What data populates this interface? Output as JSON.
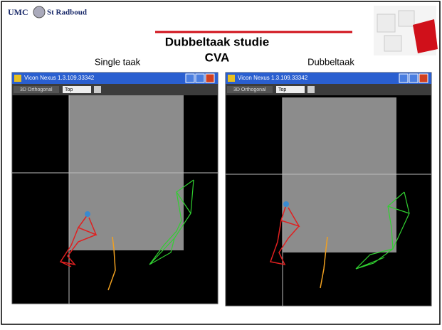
{
  "header": {
    "logo_left": "UMC",
    "logo_right": "St Radboud"
  },
  "title": {
    "line1": "Dubbeltaak studie",
    "line2": "CVA"
  },
  "panels": [
    {
      "label": "Single taak",
      "window_title": "Vicon Nexus 1.3.109.33342",
      "view": "3D Orthogonal",
      "camera": "Top"
    },
    {
      "label": "Dubbeltaak",
      "window_title": "Vicon Nexus 1.3.109.33342",
      "view": "3D Orthogonal",
      "camera": "Top"
    }
  ]
}
